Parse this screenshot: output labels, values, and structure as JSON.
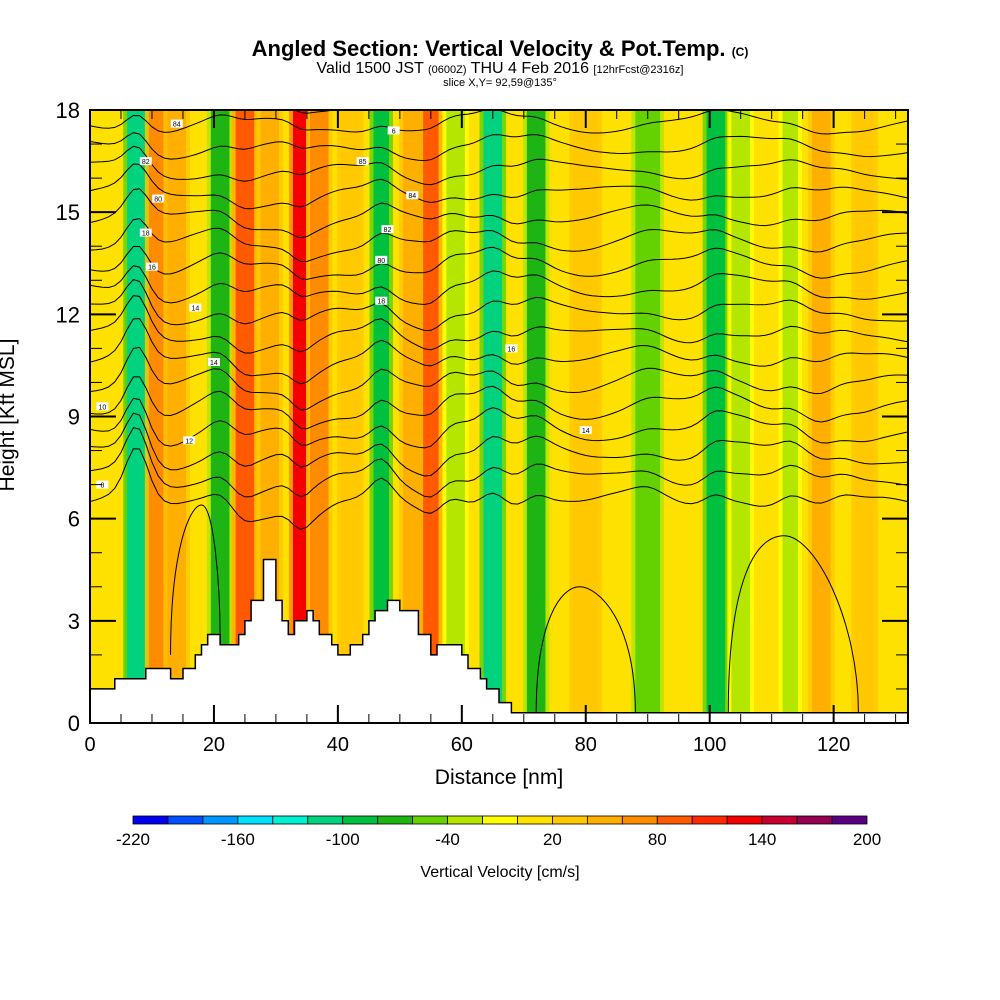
{
  "chart_data": {
    "type": "heatmap",
    "title": "Angled Section: Vertical Velocity & Pot.Temp.",
    "title_unit": "(C)",
    "subtitle_main_a": "Valid 1500 JST",
    "subtitle_small_a": "(0600Z)",
    "subtitle_main_b": "THU 4 Feb 2016",
    "subtitle_small_b": "[12hrFcst@2316z]",
    "slice_label": "slice X,Y= 92,59@135°",
    "xlabel": "Distance [nm]",
    "ylabel": "Height [Kft MSL]",
    "xlim": [
      0,
      132
    ],
    "ylim": [
      0,
      18
    ],
    "x_ticks": [
      0,
      20,
      40,
      60,
      80,
      100,
      120
    ],
    "x_tick_labels": [
      "0",
      "20",
      "40",
      "60",
      "80",
      "100",
      "120"
    ],
    "y_ticks": [
      0,
      3,
      6,
      9,
      12,
      15,
      18
    ],
    "y_tick_labels": [
      "0",
      "3",
      "6",
      "9",
      "12",
      "15",
      "18"
    ],
    "colorbar": {
      "label": "Vertical Velocity [cm/s]",
      "levels": [
        -220,
        -200,
        -180,
        -160,
        -140,
        -120,
        -100,
        -80,
        -60,
        -40,
        -20,
        0,
        20,
        40,
        60,
        80,
        100,
        120,
        140,
        160,
        180,
        200
      ],
      "tick_labels": [
        "-220",
        "-160",
        "-100",
        "-40",
        "20",
        "80",
        "140",
        "200"
      ],
      "tick_values": [
        -220,
        -160,
        -100,
        -40,
        20,
        80,
        140,
        200
      ],
      "colors": [
        "#0000f0",
        "#0050ff",
        "#0096ff",
        "#00e1ff",
        "#00f0d2",
        "#00d27d",
        "#00c040",
        "#1eb414",
        "#64d200",
        "#b4e600",
        "#ffff00",
        "#ffe100",
        "#ffc800",
        "#ffaf00",
        "#ff8c00",
        "#ff5a00",
        "#ff2800",
        "#f50000",
        "#c80032",
        "#960050",
        "#5a0082"
      ]
    },
    "velocity_bands": [
      {
        "x": 7.5,
        "w": 2.5,
        "v": -200,
        "ztop": 13
      },
      {
        "x": 8,
        "w": 4,
        "v": -120,
        "ztop": 18
      },
      {
        "x": 11,
        "w": 3,
        "v": 70
      },
      {
        "x": 14,
        "w": 3,
        "v": 40
      },
      {
        "x": 21,
        "w": 3,
        "v": -70
      },
      {
        "x": 25,
        "w": 3,
        "v": 80
      },
      {
        "x": 29,
        "w": 3,
        "v": 40
      },
      {
        "x": 34,
        "w": 2.5,
        "v": 130
      },
      {
        "x": 37,
        "w": 3,
        "v": 60
      },
      {
        "x": 42,
        "w": 3,
        "v": 20
      },
      {
        "x": 47,
        "w": 2.5,
        "v": -100
      },
      {
        "x": 52,
        "w": 3,
        "v": 50
      },
      {
        "x": 55,
        "w": 2.5,
        "v": 80
      },
      {
        "x": 59,
        "w": 3,
        "v": -40
      },
      {
        "x": 65,
        "w": 3,
        "v": -110
      },
      {
        "x": 72,
        "w": 3,
        "v": -70
      },
      {
        "x": 80,
        "w": 4,
        "v": 30
      },
      {
        "x": 90,
        "w": 4,
        "v": -60
      },
      {
        "x": 101,
        "w": 3,
        "v": -90
      },
      {
        "x": 105,
        "w": 3,
        "v": -40
      },
      {
        "x": 113,
        "w": 2.5,
        "v": -40
      },
      {
        "x": 118,
        "w": 3,
        "v": 50
      },
      {
        "x": 125,
        "w": 3,
        "v": 20
      }
    ],
    "isentrope_labels": [
      "84",
      "82",
      "80",
      "18",
      "16",
      "14",
      "14",
      "12",
      "10",
      "8",
      "6",
      "85",
      "84",
      "82",
      "80",
      "18",
      "16",
      "14"
    ],
    "terrain": {
      "x": [
        0,
        4,
        4,
        9,
        9,
        13,
        13,
        15,
        15,
        17,
        17,
        18,
        18,
        19,
        19,
        21,
        21,
        24,
        24,
        25,
        25,
        26,
        26,
        28,
        28,
        30,
        30,
        31,
        31,
        32,
        32,
        33,
        33,
        35,
        35,
        36,
        36,
        37,
        37,
        39,
        39,
        40,
        40,
        42,
        42,
        44,
        44,
        45,
        45,
        46,
        46,
        48,
        48,
        49,
        49,
        50,
        50,
        53,
        53,
        55,
        55,
        56,
        56,
        60,
        60,
        61,
        61,
        63,
        63,
        64,
        64,
        66,
        66,
        68,
        68,
        70,
        70,
        72,
        132
      ],
      "y": [
        1.0,
        1.0,
        1.3,
        1.3,
        1.6,
        1.6,
        1.3,
        1.3,
        1.6,
        1.6,
        2.0,
        2.0,
        2.3,
        2.3,
        2.6,
        2.6,
        2.3,
        2.3,
        2.6,
        2.6,
        3.0,
        3.0,
        3.6,
        3.6,
        4.8,
        4.8,
        3.6,
        3.6,
        3.0,
        3.0,
        2.6,
        2.6,
        3.0,
        3.0,
        3.3,
        3.3,
        3.0,
        3.0,
        2.6,
        2.6,
        2.3,
        2.3,
        2.0,
        2.0,
        2.3,
        2.3,
        2.6,
        2.6,
        3.0,
        3.0,
        3.3,
        3.3,
        3.6,
        3.6,
        3.6,
        3.6,
        3.3,
        3.3,
        2.6,
        2.6,
        2.0,
        2.0,
        2.3,
        2.3,
        2.0,
        2.0,
        1.6,
        1.6,
        1.3,
        1.3,
        1.0,
        1.0,
        0.6,
        0.6,
        0.3,
        0.3,
        0.3,
        0.3,
        0.3
      ]
    }
  }
}
